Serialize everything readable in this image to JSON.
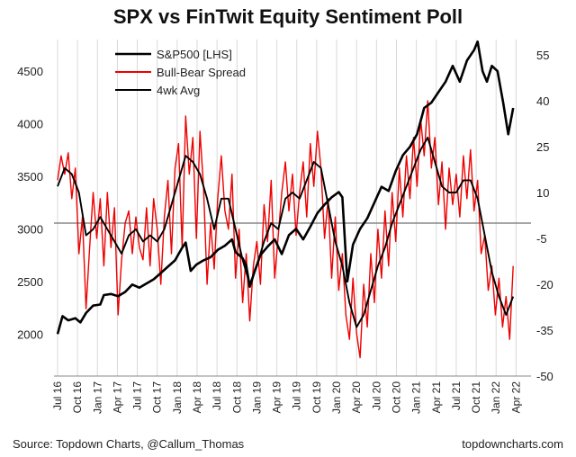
{
  "chart_data": {
    "type": "line",
    "title": "SPX vs FinTwit Equity Sentiment Poll",
    "source": "Source: Topdown Charts, @Callum_Thomas",
    "website": "topdowncharts.com",
    "x_tick_labels": [
      "Jul 16",
      "Oct 16",
      "Jan 17",
      "Apr 17",
      "Jul 17",
      "Oct 17",
      "Jan 18",
      "Apr 18",
      "Jul 18",
      "Oct 18",
      "Jan 19",
      "Apr 19",
      "Jul 19",
      "Oct 19",
      "Jan 20",
      "Apr 20",
      "Jul 20",
      "Oct 20",
      "Jan 21",
      "Apr 21",
      "Jul 21",
      "Oct 21",
      "Jan 22",
      "Apr 22"
    ],
    "x_range": [
      "2016-07",
      "2022-06"
    ],
    "left_axis": {
      "ylim": [
        1600,
        4800
      ],
      "ticks": [
        2000,
        2500,
        3000,
        3500,
        4000,
        4500
      ],
      "tick_labels": [
        "2000",
        "2500",
        "3000",
        "3500",
        "4000",
        "4500"
      ]
    },
    "right_axis": {
      "ylim": [
        -50,
        60
      ],
      "ticks": [
        -50,
        -35,
        -20,
        -5,
        10,
        25,
        40,
        55
      ],
      "tick_labels": [
        "-50",
        "-35",
        "-20",
        "-5",
        "10",
        "25",
        "40",
        "55"
      ]
    },
    "zero_line_value": 0,
    "legend": [
      "S&P500 [LHS]",
      "Bull-Bear Spread",
      "4wk Avg"
    ],
    "series": [
      {
        "name": "S&P500 [LHS]",
        "axis": "left",
        "color": "#000000",
        "points": [
          [
            0,
            2000
          ],
          [
            0.7,
            2170
          ],
          [
            1.5,
            2130
          ],
          [
            2.5,
            2150
          ],
          [
            3.2,
            2110
          ],
          [
            4,
            2200
          ],
          [
            5,
            2270
          ],
          [
            6,
            2280
          ],
          [
            6.5,
            2370
          ],
          [
            7.5,
            2380
          ],
          [
            8.5,
            2360
          ],
          [
            9.5,
            2400
          ],
          [
            10.5,
            2470
          ],
          [
            11.5,
            2440
          ],
          [
            12.5,
            2480
          ],
          [
            13.5,
            2520
          ],
          [
            14.5,
            2580
          ],
          [
            15.5,
            2640
          ],
          [
            16.5,
            2700
          ],
          [
            17.5,
            2820
          ],
          [
            18,
            2870
          ],
          [
            18.7,
            2600
          ],
          [
            19.5,
            2660
          ],
          [
            20.5,
            2700
          ],
          [
            21.5,
            2730
          ],
          [
            22.5,
            2800
          ],
          [
            23.5,
            2840
          ],
          [
            24.5,
            2900
          ],
          [
            25,
            2780
          ],
          [
            26,
            2720
          ],
          [
            26.5,
            2650
          ],
          [
            27,
            2450
          ],
          [
            27.7,
            2600
          ],
          [
            28.5,
            2750
          ],
          [
            29.5,
            2830
          ],
          [
            30.5,
            2900
          ],
          [
            31.5,
            2760
          ],
          [
            32.5,
            2940
          ],
          [
            33.5,
            3000
          ],
          [
            34.5,
            2900
          ],
          [
            35.5,
            3020
          ],
          [
            36.5,
            3150
          ],
          [
            37.5,
            3230
          ],
          [
            38.5,
            3300
          ],
          [
            39.5,
            3350
          ],
          [
            40,
            3300
          ],
          [
            40.7,
            2500
          ],
          [
            41.5,
            2850
          ],
          [
            42.5,
            3000
          ],
          [
            43.5,
            3100
          ],
          [
            44.5,
            3250
          ],
          [
            45.5,
            3400
          ],
          [
            46.5,
            3360
          ],
          [
            47.5,
            3550
          ],
          [
            48.5,
            3700
          ],
          [
            49.5,
            3780
          ],
          [
            50.5,
            3900
          ],
          [
            51.5,
            4150
          ],
          [
            52.5,
            4200
          ],
          [
            53.5,
            4300
          ],
          [
            54.5,
            4400
          ],
          [
            55.5,
            4550
          ],
          [
            56.5,
            4400
          ],
          [
            57.5,
            4600
          ],
          [
            58.5,
            4700
          ],
          [
            59,
            4780
          ],
          [
            59.7,
            4500
          ],
          [
            60.3,
            4400
          ],
          [
            61,
            4550
          ],
          [
            61.8,
            4500
          ],
          [
            62.6,
            4200
          ],
          [
            63.3,
            3900
          ],
          [
            64,
            4150
          ]
        ]
      },
      {
        "name": "Bull-Bear Spread",
        "axis": "right",
        "color": "#ee0000",
        "points": [
          [
            0,
            14
          ],
          [
            0.5,
            22
          ],
          [
            1,
            16
          ],
          [
            1.5,
            23
          ],
          [
            2,
            8
          ],
          [
            2.5,
            18
          ],
          [
            3,
            -10
          ],
          [
            3.5,
            2
          ],
          [
            4,
            -28
          ],
          [
            4.5,
            -8
          ],
          [
            5,
            10
          ],
          [
            5.5,
            -5
          ],
          [
            6,
            8
          ],
          [
            6.5,
            -14
          ],
          [
            7,
            10
          ],
          [
            7.5,
            -8
          ],
          [
            8,
            5
          ],
          [
            8.5,
            -30
          ],
          [
            9,
            -12
          ],
          [
            9.5,
            0
          ],
          [
            10,
            4
          ],
          [
            10.5,
            -10
          ],
          [
            11,
            2
          ],
          [
            11.5,
            -8
          ],
          [
            12,
            -12
          ],
          [
            12.5,
            5
          ],
          [
            13,
            -14
          ],
          [
            13.5,
            8
          ],
          [
            14,
            -2
          ],
          [
            14.5,
            -20
          ],
          [
            15,
            2
          ],
          [
            15.5,
            14
          ],
          [
            16,
            -10
          ],
          [
            16.5,
            18
          ],
          [
            17,
            26
          ],
          [
            17.5,
            -8
          ],
          [
            18,
            35
          ],
          [
            18.5,
            16
          ],
          [
            19,
            28
          ],
          [
            19.5,
            -5
          ],
          [
            20,
            30
          ],
          [
            20.5,
            12
          ],
          [
            21,
            -20
          ],
          [
            21.5,
            0
          ],
          [
            22,
            -15
          ],
          [
            22.5,
            8
          ],
          [
            23,
            22
          ],
          [
            23.5,
            4
          ],
          [
            24,
            -2
          ],
          [
            24.5,
            16
          ],
          [
            25,
            -18
          ],
          [
            25.5,
            -2
          ],
          [
            26,
            -26
          ],
          [
            26.5,
            -10
          ],
          [
            27,
            -32
          ],
          [
            27.5,
            -14
          ],
          [
            28,
            -6
          ],
          [
            28.5,
            -20
          ],
          [
            29,
            6
          ],
          [
            29.5,
            -6
          ],
          [
            30,
            14
          ],
          [
            30.5,
            -18
          ],
          [
            31,
            -4
          ],
          [
            31.5,
            10
          ],
          [
            32,
            20
          ],
          [
            32.5,
            4
          ],
          [
            33,
            16
          ],
          [
            33.5,
            -4
          ],
          [
            34,
            10
          ],
          [
            34.5,
            20
          ],
          [
            35,
            2
          ],
          [
            35.5,
            26
          ],
          [
            36,
            12
          ],
          [
            36.5,
            30
          ],
          [
            37,
            18
          ],
          [
            37.5,
            -5
          ],
          [
            38,
            8
          ],
          [
            38.5,
            -18
          ],
          [
            39,
            2
          ],
          [
            39.5,
            -22
          ],
          [
            40,
            -10
          ],
          [
            40.5,
            -30
          ],
          [
            41,
            -38
          ],
          [
            41.5,
            -18
          ],
          [
            42,
            -36
          ],
          [
            42.5,
            -44
          ],
          [
            43,
            -20
          ],
          [
            43.5,
            -34
          ],
          [
            44,
            -10
          ],
          [
            44.5,
            -26
          ],
          [
            45,
            -2
          ],
          [
            45.5,
            -18
          ],
          [
            46,
            4
          ],
          [
            46.5,
            -14
          ],
          [
            47,
            10
          ],
          [
            47.5,
            -6
          ],
          [
            48,
            18
          ],
          [
            48.5,
            2
          ],
          [
            49,
            22
          ],
          [
            49.5,
            8
          ],
          [
            50,
            28
          ],
          [
            50.5,
            12
          ],
          [
            51,
            34
          ],
          [
            51.5,
            22
          ],
          [
            52,
            40
          ],
          [
            52.5,
            18
          ],
          [
            53,
            28
          ],
          [
            53.5,
            6
          ],
          [
            54,
            20
          ],
          [
            54.5,
            -2
          ],
          [
            55,
            18
          ],
          [
            55.5,
            6
          ],
          [
            56,
            16
          ],
          [
            56.5,
            2
          ],
          [
            57,
            22
          ],
          [
            57.5,
            8
          ],
          [
            58,
            24
          ],
          [
            58.5,
            4
          ],
          [
            59,
            14
          ],
          [
            59.5,
            -10
          ],
          [
            60,
            -4
          ],
          [
            60.5,
            -22
          ],
          [
            61,
            -14
          ],
          [
            61.5,
            -30
          ],
          [
            62,
            -18
          ],
          [
            62.5,
            -34
          ],
          [
            63,
            -24
          ],
          [
            63.5,
            -38
          ],
          [
            64,
            -14
          ]
        ]
      },
      {
        "name": "4wk Avg",
        "axis": "right",
        "color": "#000000",
        "points": [
          [
            0,
            12
          ],
          [
            1,
            18
          ],
          [
            2,
            16
          ],
          [
            3,
            10
          ],
          [
            4,
            -4
          ],
          [
            5,
            -2
          ],
          [
            6,
            2
          ],
          [
            7,
            -2
          ],
          [
            8,
            -6
          ],
          [
            9,
            -10
          ],
          [
            10,
            -4
          ],
          [
            11,
            -2
          ],
          [
            12,
            -6
          ],
          [
            13,
            -4
          ],
          [
            14,
            -6
          ],
          [
            15,
            -2
          ],
          [
            16,
            6
          ],
          [
            17,
            14
          ],
          [
            18,
            22
          ],
          [
            19,
            20
          ],
          [
            20,
            16
          ],
          [
            21,
            8
          ],
          [
            22,
            -2
          ],
          [
            23,
            8
          ],
          [
            24,
            8
          ],
          [
            25,
            -2
          ],
          [
            26,
            -12
          ],
          [
            27,
            -20
          ],
          [
            28,
            -14
          ],
          [
            29,
            -6
          ],
          [
            30,
            0
          ],
          [
            31,
            -2
          ],
          [
            32,
            8
          ],
          [
            33,
            10
          ],
          [
            34,
            8
          ],
          [
            35,
            14
          ],
          [
            36,
            20
          ],
          [
            37,
            18
          ],
          [
            38,
            6
          ],
          [
            39,
            -6
          ],
          [
            40,
            -14
          ],
          [
            41,
            -26
          ],
          [
            42,
            -34
          ],
          [
            43,
            -30
          ],
          [
            44,
            -22
          ],
          [
            45,
            -14
          ],
          [
            46,
            -8
          ],
          [
            47,
            0
          ],
          [
            48,
            6
          ],
          [
            49,
            12
          ],
          [
            50,
            18
          ],
          [
            51,
            24
          ],
          [
            52,
            28
          ],
          [
            53,
            20
          ],
          [
            54,
            12
          ],
          [
            55,
            10
          ],
          [
            56,
            10
          ],
          [
            57,
            14
          ],
          [
            58,
            14
          ],
          [
            59,
            8
          ],
          [
            60,
            -4
          ],
          [
            61,
            -16
          ],
          [
            62,
            -24
          ],
          [
            63,
            -30
          ],
          [
            64,
            -24
          ]
        ]
      }
    ]
  }
}
